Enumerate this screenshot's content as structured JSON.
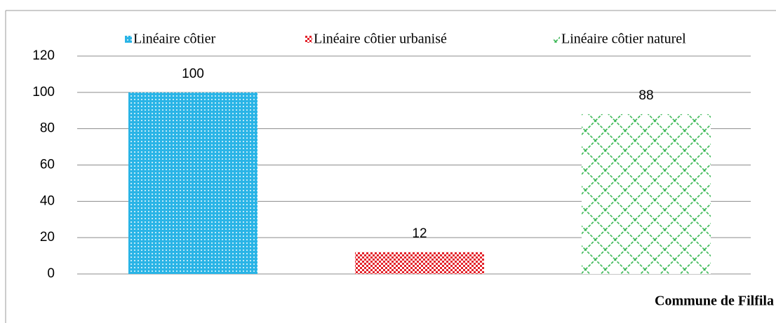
{
  "chart_data": {
    "type": "bar",
    "categories": [
      "Commune de Filfila"
    ],
    "series": [
      {
        "name": "Linéaire côtier",
        "color": "#2ab4e6",
        "values": [
          100
        ]
      },
      {
        "name": "Linéaire côtier urbanisé",
        "color": "#e3232b",
        "values": [
          12
        ]
      },
      {
        "name": "Linéaire côtier naturel",
        "color": "#2fb34b",
        "values": [
          88
        ]
      }
    ],
    "ylim": [
      0,
      120
    ],
    "yticks": [
      0,
      20,
      40,
      60,
      80,
      100,
      120
    ],
    "grid": true,
    "legend": "top"
  }
}
